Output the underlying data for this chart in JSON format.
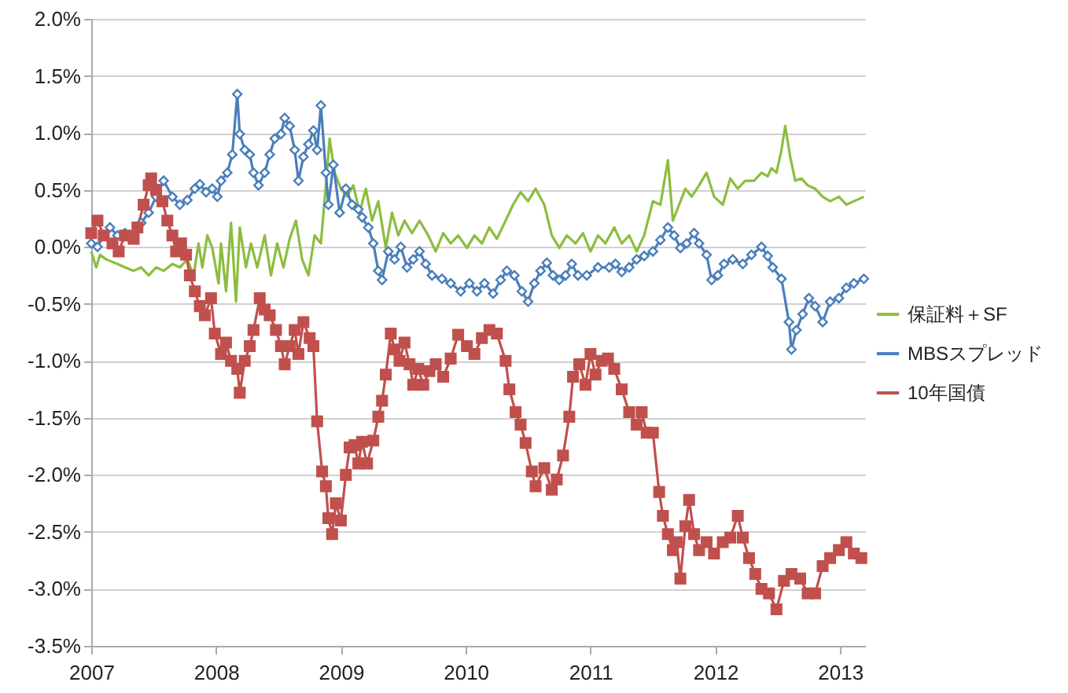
{
  "chart_data": {
    "type": "line",
    "xlim": [
      2007,
      2013.2
    ],
    "xticks": [
      2007,
      2008,
      2009,
      2010,
      2011,
      2012,
      2013
    ],
    "ylim": [
      -3.5,
      2
    ],
    "yticks": [
      {
        "value": 2,
        "label": "2.0%"
      },
      {
        "value": 1.5,
        "label": "1.5%"
      },
      {
        "value": 1,
        "label": "1.0%"
      },
      {
        "value": 0.5,
        "label": "0.5%"
      },
      {
        "value": 0,
        "label": "0.0%"
      },
      {
        "value": -0.5,
        "label": "-0.5%"
      },
      {
        "value": -1,
        "label": "-1.0%"
      },
      {
        "value": -1.5,
        "label": "-1.5%"
      },
      {
        "value": -2,
        "label": "-2.0%"
      },
      {
        "value": -2.5,
        "label": "-2.5%"
      },
      {
        "value": -3,
        "label": "-3.0%"
      },
      {
        "value": -3.5,
        "label": "-3.5%"
      }
    ],
    "grid": "y",
    "legend": "right",
    "series": [
      {
        "name": "保証料＋SF",
        "color": "#8cbd3f",
        "marker": "none",
        "x": [
          2007.0,
          2007.04,
          2007.07,
          2007.12,
          2007.21,
          2007.27,
          2007.34,
          2007.4,
          2007.46,
          2007.52,
          2007.58,
          2007.65,
          2007.71,
          2007.77,
          2007.82,
          2007.86,
          2007.89,
          2007.93,
          2007.97,
          2008.02,
          2008.04,
          2008.08,
          2008.12,
          2008.16,
          2008.19,
          2008.24,
          2008.28,
          2008.33,
          2008.39,
          2008.44,
          2008.49,
          2008.54,
          2008.59,
          2008.64,
          2008.69,
          2008.74,
          2008.79,
          2008.84,
          2008.88,
          2008.91,
          2008.95,
          2009.0,
          2009.05,
          2009.1,
          2009.15,
          2009.2,
          2009.25,
          2009.3,
          2009.36,
          2009.41,
          2009.46,
          2009.51,
          2009.57,
          2009.63,
          2009.7,
          2009.76,
          2009.82,
          2009.88,
          2009.94,
          2010.01,
          2010.07,
          2010.13,
          2010.19,
          2010.25,
          2010.32,
          2010.38,
          2010.44,
          2010.5,
          2010.56,
          2010.63,
          2010.69,
          2010.75,
          2010.81,
          2010.88,
          2010.94,
          2011.0,
          2011.06,
          2011.12,
          2011.19,
          2011.25,
          2011.31,
          2011.37,
          2011.43,
          2011.5,
          2011.56,
          2011.62,
          2011.66,
          2011.71,
          2011.76,
          2011.81,
          2011.87,
          2011.93,
          2011.99,
          2012.06,
          2012.12,
          2012.18,
          2012.24,
          2012.31,
          2012.37,
          2012.42,
          2012.45,
          2012.49,
          2012.53,
          2012.56,
          2012.6,
          2012.64,
          2012.69,
          2012.74,
          2012.8,
          2012.86,
          2012.92,
          2012.99,
          2013.05,
          2013.11,
          2013.19
        ],
        "values": [
          -0.04,
          -0.18,
          -0.07,
          -0.11,
          -0.15,
          -0.18,
          -0.21,
          -0.18,
          -0.25,
          -0.18,
          -0.21,
          -0.15,
          -0.18,
          -0.11,
          -0.25,
          0.03,
          -0.18,
          0.1,
          -0.01,
          -0.32,
          0.03,
          -0.39,
          0.21,
          -0.48,
          0.17,
          -0.18,
          0.03,
          -0.18,
          0.1,
          -0.25,
          0.03,
          -0.18,
          0.07,
          0.23,
          -0.11,
          -0.25,
          0.1,
          0.03,
          0.54,
          0.95,
          0.65,
          0.51,
          0.44,
          0.54,
          0.3,
          0.51,
          0.23,
          0.4,
          -0.01,
          0.3,
          0.1,
          0.23,
          0.12,
          0.23,
          0.1,
          -0.04,
          0.12,
          0.03,
          0.1,
          -0.01,
          0.1,
          0.03,
          0.17,
          0.07,
          0.23,
          0.37,
          0.48,
          0.4,
          0.51,
          0.37,
          0.1,
          -0.01,
          0.1,
          0.03,
          0.12,
          -0.04,
          0.1,
          0.03,
          0.17,
          0.03,
          0.1,
          -0.04,
          0.1,
          0.4,
          0.37,
          0.76,
          0.23,
          0.37,
          0.51,
          0.44,
          0.54,
          0.65,
          0.44,
          0.37,
          0.6,
          0.51,
          0.58,
          0.58,
          0.65,
          0.62,
          0.69,
          0.65,
          0.85,
          1.06,
          0.79,
          0.58,
          0.6,
          0.54,
          0.51,
          0.44,
          0.4,
          0.44,
          0.37,
          0.4,
          0.44
        ]
      },
      {
        "name": "MBSスプレッド",
        "color": "#4a7ebb",
        "marker": "diamond",
        "x": [
          2007.0,
          2007.05,
          2007.1,
          2007.15,
          2007.21,
          2007.27,
          2007.34,
          2007.4,
          2007.46,
          2007.52,
          2007.58,
          2007.65,
          2007.71,
          2007.77,
          2007.83,
          2007.87,
          2007.92,
          2007.97,
          2008.01,
          2008.04,
          2008.09,
          2008.13,
          2008.17,
          2008.19,
          2008.23,
          2008.27,
          2008.3,
          2008.34,
          2008.39,
          2008.43,
          2008.47,
          2008.52,
          2008.55,
          2008.59,
          2008.63,
          2008.66,
          2008.7,
          2008.74,
          2008.78,
          2008.81,
          2008.84,
          2008.88,
          2008.9,
          2008.94,
          2008.99,
          2009.04,
          2009.09,
          2009.14,
          2009.17,
          2009.22,
          2009.26,
          2009.3,
          2009.33,
          2009.38,
          2009.43,
          2009.48,
          2009.53,
          2009.58,
          2009.63,
          2009.68,
          2009.73,
          2009.81,
          2009.88,
          2009.96,
          2010.03,
          2010.09,
          2010.15,
          2010.22,
          2010.28,
          2010.33,
          2010.39,
          2010.45,
          2010.5,
          2010.55,
          2010.6,
          2010.65,
          2010.7,
          2010.75,
          2010.8,
          2010.85,
          2010.9,
          2010.97,
          2011.06,
          2011.15,
          2011.2,
          2011.25,
          2011.31,
          2011.37,
          2011.43,
          2011.5,
          2011.56,
          2011.62,
          2011.67,
          2011.72,
          2011.77,
          2011.83,
          2011.87,
          2011.93,
          2011.97,
          2012.02,
          2012.07,
          2012.14,
          2012.22,
          2012.29,
          2012.37,
          2012.42,
          2012.46,
          2012.53,
          2012.59,
          2012.61,
          2012.65,
          2012.7,
          2012.75,
          2012.8,
          2012.86,
          2012.92,
          2012.99,
          2013.05,
          2013.11,
          2013.19
        ],
        "values": [
          0.03,
          0,
          0.1,
          0.17,
          0.1,
          0.12,
          0.12,
          0.21,
          0.3,
          0.44,
          0.58,
          0.44,
          0.37,
          0.41,
          0.51,
          0.55,
          0.48,
          0.51,
          0.44,
          0.58,
          0.65,
          0.81,
          1.34,
          0.99,
          0.85,
          0.81,
          0.65,
          0.54,
          0.65,
          0.81,
          0.95,
          0.99,
          1.13,
          1.06,
          0.85,
          0.58,
          0.79,
          0.9,
          1.02,
          0.85,
          1.24,
          0.65,
          0.37,
          0.72,
          0.3,
          0.51,
          0.37,
          0.33,
          0.26,
          0.17,
          0.03,
          -0.21,
          -0.29,
          -0.04,
          -0.11,
          0,
          -0.18,
          -0.11,
          -0.04,
          -0.15,
          -0.25,
          -0.28,
          -0.32,
          -0.39,
          -0.32,
          -0.39,
          -0.32,
          -0.41,
          -0.29,
          -0.21,
          -0.25,
          -0.39,
          -0.48,
          -0.32,
          -0.21,
          -0.14,
          -0.25,
          -0.29,
          -0.25,
          -0.15,
          -0.25,
          -0.25,
          -0.18,
          -0.18,
          -0.15,
          -0.22,
          -0.18,
          -0.11,
          -0.08,
          -0.04,
          0.06,
          0.17,
          0.1,
          -0.01,
          0.03,
          0.12,
          0.03,
          -0.07,
          -0.29,
          -0.25,
          -0.15,
          -0.11,
          -0.15,
          -0.07,
          0,
          -0.08,
          -0.18,
          -0.28,
          -0.66,
          -0.9,
          -0.73,
          -0.59,
          -0.45,
          -0.52,
          -0.66,
          -0.48,
          -0.45,
          -0.36,
          -0.32,
          -0.28
        ]
      },
      {
        "name": "10年国債",
        "color": "#c0504d",
        "marker": "square",
        "x": [
          2007.0,
          2007.05,
          2007.1,
          2007.17,
          2007.22,
          2007.27,
          2007.34,
          2007.37,
          2007.42,
          2007.46,
          2007.48,
          2007.52,
          2007.57,
          2007.61,
          2007.65,
          2007.68,
          2007.72,
          2007.76,
          2007.79,
          2007.83,
          2007.87,
          2007.91,
          2007.96,
          2007.99,
          2008.04,
          2008.08,
          2008.12,
          2008.17,
          2008.19,
          2008.23,
          2008.27,
          2008.3,
          2008.35,
          2008.39,
          2008.43,
          2008.48,
          2008.52,
          2008.55,
          2008.59,
          2008.63,
          2008.66,
          2008.7,
          2008.75,
          2008.78,
          2008.81,
          2008.85,
          2008.88,
          2008.9,
          2008.93,
          2008.96,
          2009.0,
          2009.04,
          2009.07,
          2009.11,
          2009.14,
          2009.17,
          2009.21,
          2009.26,
          2009.3,
          2009.33,
          2009.36,
          2009.4,
          2009.43,
          2009.47,
          2009.51,
          2009.55,
          2009.58,
          2009.62,
          2009.66,
          2009.71,
          2009.76,
          2009.82,
          2009.88,
          2009.94,
          2010.01,
          2010.07,
          2010.13,
          2010.19,
          2010.25,
          2010.32,
          2010.35,
          2010.4,
          2010.44,
          2010.48,
          2010.53,
          2010.56,
          2010.63,
          2010.69,
          2010.73,
          2010.78,
          2010.83,
          2010.86,
          2010.91,
          2010.96,
          2011.0,
          2011.04,
          2011.09,
          2011.14,
          2011.19,
          2011.25,
          2011.31,
          2011.37,
          2011.41,
          2011.45,
          2011.5,
          2011.55,
          2011.58,
          2011.62,
          2011.66,
          2011.69,
          2011.72,
          2011.76,
          2011.79,
          2011.83,
          2011.87,
          2011.93,
          2011.99,
          2012.06,
          2012.12,
          2012.18,
          2012.22,
          2012.27,
          2012.32,
          2012.37,
          2012.43,
          2012.49,
          2012.55,
          2012.61,
          2012.68,
          2012.74,
          2012.8,
          2012.86,
          2012.92,
          2012.99,
          2013.05,
          2013.11,
          2013.17
        ],
        "values": [
          0.12,
          0.23,
          0.1,
          0.03,
          -0.04,
          0.1,
          0.07,
          0.17,
          0.37,
          0.54,
          0.6,
          0.5,
          0.4,
          0.23,
          0.1,
          -0.04,
          0.03,
          -0.07,
          -0.25,
          -0.39,
          -0.52,
          -0.6,
          -0.45,
          -0.76,
          -0.94,
          -0.84,
          -1.0,
          -1.07,
          -1.28,
          -1.0,
          -0.87,
          -0.73,
          -0.45,
          -0.55,
          -0.6,
          -0.73,
          -0.87,
          -1.03,
          -0.87,
          -0.73,
          -0.94,
          -0.66,
          -0.8,
          -0.87,
          -1.53,
          -1.97,
          -2.1,
          -2.38,
          -2.52,
          -2.25,
          -2.4,
          -2.0,
          -1.76,
          -1.74,
          -1.9,
          -1.71,
          -1.9,
          -1.7,
          -1.49,
          -1.35,
          -1.12,
          -0.76,
          -0.9,
          -1.0,
          -0.84,
          -1.03,
          -1.21,
          -1.07,
          -1.21,
          -1.09,
          -1.03,
          -1.14,
          -0.98,
          -0.77,
          -0.87,
          -0.94,
          -0.8,
          -0.73,
          -0.76,
          -1.0,
          -1.25,
          -1.45,
          -1.56,
          -1.72,
          -1.97,
          -2.1,
          -1.94,
          -2.13,
          -2.04,
          -1.83,
          -1.49,
          -1.14,
          -1.03,
          -1.21,
          -0.94,
          -1.12,
          -1.0,
          -0.98,
          -1.07,
          -1.25,
          -1.45,
          -1.56,
          -1.45,
          -1.63,
          -1.63,
          -2.15,
          -2.36,
          -2.52,
          -2.66,
          -2.59,
          -2.91,
          -2.45,
          -2.22,
          -2.52,
          -2.66,
          -2.59,
          -2.69,
          -2.59,
          -2.55,
          -2.36,
          -2.55,
          -2.73,
          -2.87,
          -3.0,
          -3.04,
          -3.18,
          -2.93,
          -2.87,
          -2.91,
          -3.04,
          -3.04,
          -2.8,
          -2.73,
          -2.66,
          -2.59,
          -2.69,
          -2.73
        ]
      }
    ]
  }
}
